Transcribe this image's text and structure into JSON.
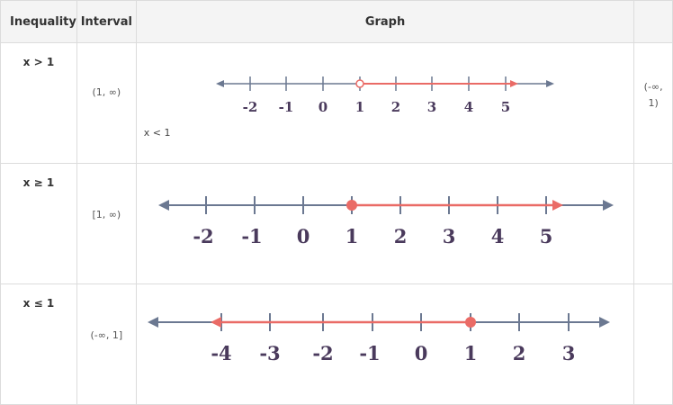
{
  "headers": {
    "inequality": "Inequality",
    "interval": "Interval",
    "graph": "Graph"
  },
  "colors": {
    "axis": "#6b7891",
    "highlight": "#ea6b66",
    "label": "#4a3a5c"
  },
  "rows": [
    {
      "inequality": "x > 1",
      "interval": "(1, ∞)",
      "note": "x < 1",
      "extra_line1": "(-∞,",
      "extra_line2": "1)",
      "ticks": [
        "-2",
        "-1",
        "0",
        "1",
        "2",
        "3",
        "4",
        "5"
      ],
      "point": "open circle at 1",
      "ray": "right"
    },
    {
      "inequality": "x ≥ 1",
      "interval": "[1, ∞)",
      "ticks": [
        "-2",
        "-1",
        "0",
        "1",
        "2",
        "3",
        "4",
        "5"
      ],
      "point": "filled circle at 1",
      "ray": "right"
    },
    {
      "inequality": "x ≤ 1",
      "interval": "(-∞, 1]",
      "ticks": [
        "-4",
        "-3",
        "-2",
        "-1",
        "0",
        "1",
        "2",
        "3"
      ],
      "point": "filled circle at 1",
      "ray": "left"
    }
  ]
}
